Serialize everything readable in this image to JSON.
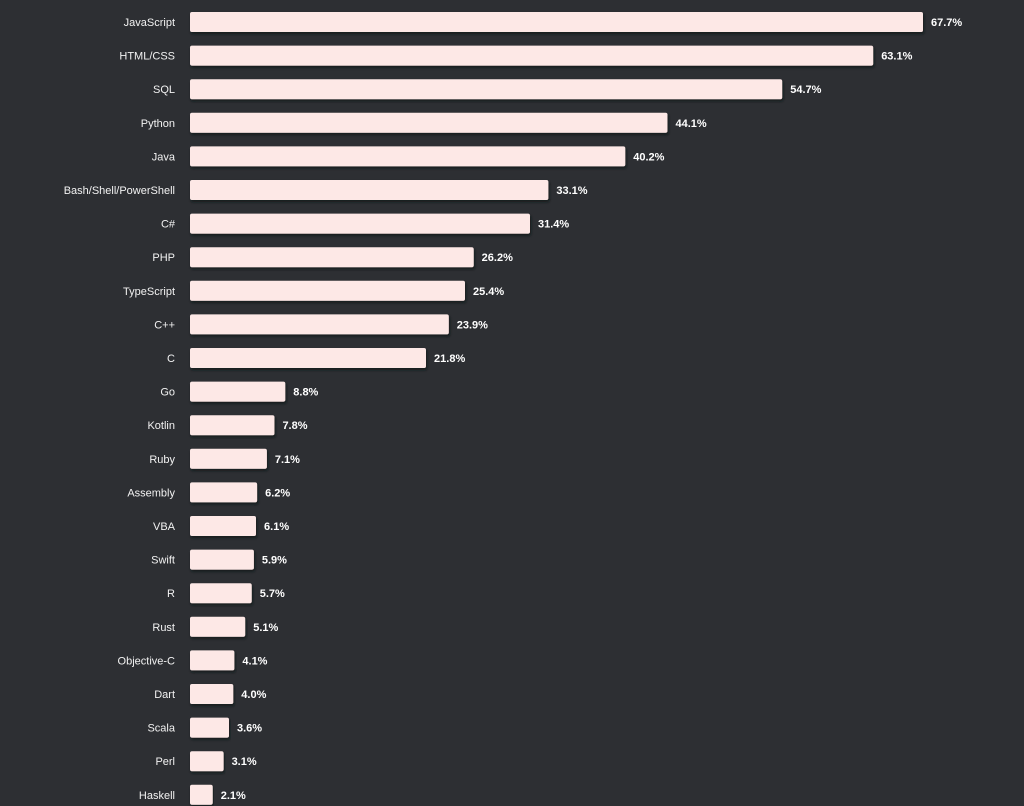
{
  "chart_data": {
    "type": "bar",
    "orientation": "horizontal",
    "categories": [
      "JavaScript",
      "HTML/CSS",
      "SQL",
      "Python",
      "Java",
      "Bash/Shell/PowerShell",
      "C#",
      "PHP",
      "TypeScript",
      "C++",
      "C",
      "Go",
      "Kotlin",
      "Ruby",
      "Assembly",
      "VBA",
      "Swift",
      "R",
      "Rust",
      "Objective-C",
      "Dart",
      "Scala",
      "Perl",
      "Haskell"
    ],
    "values": [
      67.7,
      63.1,
      54.7,
      44.1,
      40.2,
      33.1,
      31.4,
      26.2,
      25.4,
      23.9,
      21.8,
      8.8,
      7.8,
      7.1,
      6.2,
      6.1,
      5.9,
      5.7,
      5.1,
      4.1,
      4.0,
      3.6,
      3.1,
      2.1
    ],
    "value_labels": [
      "67.7%",
      "63.1%",
      "54.7%",
      "44.1%",
      "40.2%",
      "33.1%",
      "31.4%",
      "26.2%",
      "25.4%",
      "23.9%",
      "21.8%",
      "8.8%",
      "7.8%",
      "7.1%",
      "6.2%",
      "6.1%",
      "5.9%",
      "5.7%",
      "5.1%",
      "4.1%",
      "4.0%",
      "3.6%",
      "3.1%",
      "2.1%"
    ],
    "unit": "%",
    "grid": false,
    "legend": "none",
    "colors": {
      "background": "#2d2f33",
      "bar": "#fde8e6",
      "bar_shadow": "#15161a",
      "category_text": "#f2f2f2",
      "value_text": "#ffffff"
    }
  }
}
